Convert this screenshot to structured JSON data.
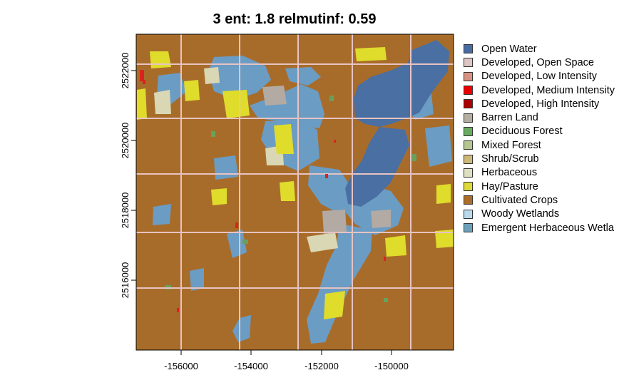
{
  "title": "3 ent: 1.8 relmutinf: 0.59",
  "map": {
    "x_ticks": [
      "-156000",
      "-154000",
      "-152000",
      "-150000"
    ],
    "y_ticks": [
      "2522000",
      "2520000",
      "2518000",
      "2516000"
    ],
    "colors": {
      "water": "#4a6fa3",
      "crops": "#a86c2a",
      "wetland": "#6b9cc4",
      "hay": "#dfdc2c",
      "herb": "#d9d7b4",
      "road": "#e7c3c3",
      "dev": "#d9231e",
      "barren": "#b3aaa3",
      "forest": "#68a15a"
    }
  },
  "legend": [
    {
      "label": "Open Water",
      "color": "#476ba1"
    },
    {
      "label": "Developed, Open Space",
      "color": "#dec5c5"
    },
    {
      "label": "Developed, Low Intensity",
      "color": "#d99282"
    },
    {
      "label": "Developed, Medium Intensity",
      "color": "#eb0000"
    },
    {
      "label": "Developed, High Intensity",
      "color": "#ab0000"
    },
    {
      "label": "Barren Land",
      "color": "#b3ac9f"
    },
    {
      "label": "Deciduous Forest",
      "color": "#68ab5f"
    },
    {
      "label": "Mixed Forest",
      "color": "#b5c58f"
    },
    {
      "label": "Shrub/Scrub",
      "color": "#ccb879"
    },
    {
      "label": "Herbaceous",
      "color": "#dfdfc2"
    },
    {
      "label": "Hay/Pasture",
      "color": "#dcd939"
    },
    {
      "label": "Cultivated Crops",
      "color": "#ab6c28"
    },
    {
      "label": "Woody Wetlands",
      "color": "#b8d9eb"
    },
    {
      "label": "Emergent Herbaceous Wetla",
      "color": "#6c9fb8"
    }
  ]
}
